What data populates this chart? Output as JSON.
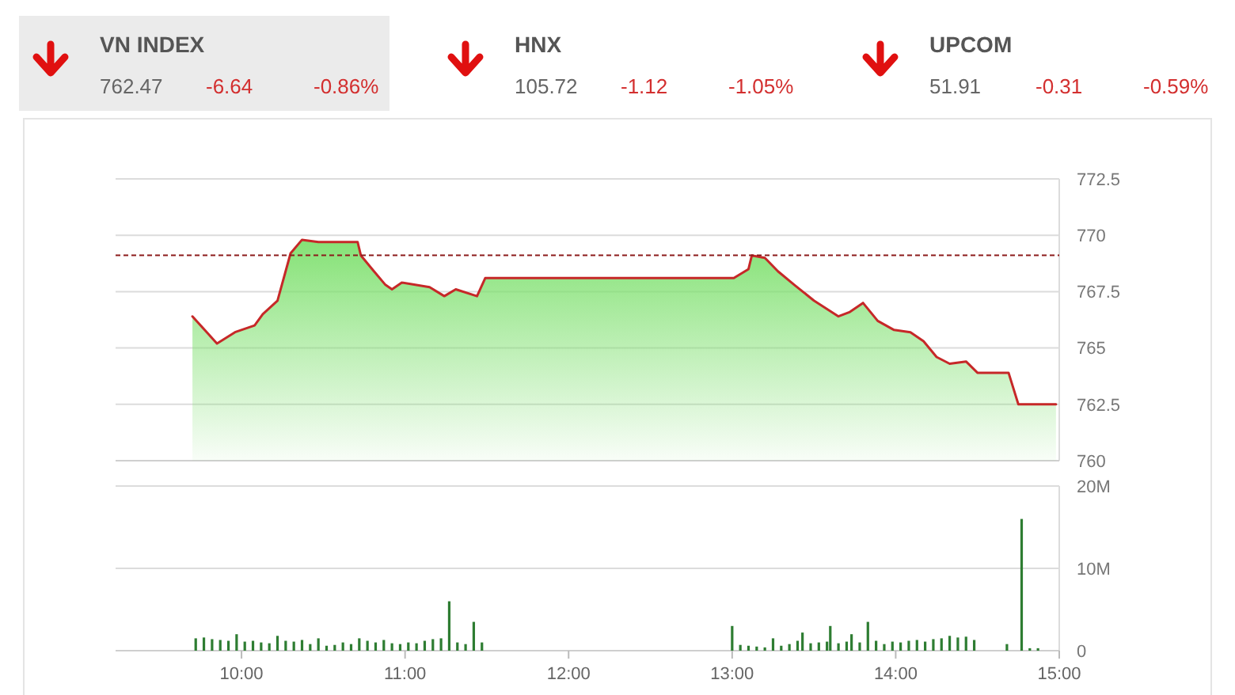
{
  "chart_data": [
    {
      "type": "other",
      "categories": [
        "VN INDEX",
        "HNX",
        "UPCOM"
      ],
      "annotations": [
        "762.47",
        "-6.64",
        "-0.86%",
        "105.72",
        "-1.12",
        "-1.05%",
        "51.91",
        "-0.31",
        "-0.59%"
      ]
    },
    {
      "type": "area",
      "x": [
        9.7,
        9.85,
        9.96,
        10.08,
        10.13,
        10.22,
        10.3,
        10.37,
        10.47,
        10.59,
        10.71,
        10.73,
        10.81,
        10.88,
        10.92,
        10.98,
        11.15,
        11.24,
        11.31,
        11.44,
        11.49,
        13.01,
        13.1,
        13.12,
        13.2,
        13.28,
        13.38,
        13.5,
        13.65,
        13.72,
        13.8,
        13.89,
        13.99,
        14.09,
        14.17,
        14.25,
        14.33,
        14.43,
        14.5,
        14.69,
        14.75,
        14.98
      ],
      "series": [
        {
          "color": "#c62828",
          "values": [
            766.4,
            765.2,
            765.7,
            766.0,
            766.5,
            767.1,
            769.2,
            769.8,
            769.7,
            769.7,
            769.7,
            769.1,
            768.4,
            767.8,
            767.6,
            767.9,
            767.7,
            767.3,
            767.6,
            767.3,
            768.1,
            768.1,
            768.5,
            769.1,
            769.0,
            768.4,
            767.8,
            767.1,
            766.4,
            766.6,
            767.0,
            766.2,
            765.8,
            765.7,
            765.3,
            764.6,
            764.3,
            764.4,
            763.9,
            763.9,
            762.5,
            762.5
          ]
        }
      ],
      "xlim": [
        9.23,
        15
      ],
      "ylim": [
        760,
        772.5
      ],
      "yticks": [
        760,
        762.5,
        765,
        767.5,
        770,
        772.5
      ],
      "grid": "y",
      "tick_labels": "y",
      "ref_lines": [
        {
          "axis": "y",
          "value": 769.11,
          "color": "#8b1a1a",
          "line_style": "dashed"
        }
      ]
    },
    {
      "type": "bar",
      "x": [
        9.72,
        9.77,
        9.82,
        9.87,
        9.92,
        9.97,
        10.02,
        10.07,
        10.12,
        10.17,
        10.22,
        10.27,
        10.32,
        10.37,
        10.42,
        10.47,
        10.52,
        10.57,
        10.62,
        10.67,
        10.72,
        10.77,
        10.82,
        10.87,
        10.92,
        10.97,
        11.02,
        11.07,
        11.12,
        11.17,
        11.22,
        11.27,
        11.32,
        11.37,
        11.42,
        11.47,
        13.0,
        13.05,
        13.1,
        13.15,
        13.2,
        13.25,
        13.3,
        13.35,
        13.4,
        13.43,
        13.48,
        13.53,
        13.58,
        13.6,
        13.65,
        13.7,
        13.73,
        13.78,
        13.83,
        13.88,
        13.93,
        13.98,
        14.03,
        14.08,
        14.13,
        14.18,
        14.23,
        14.28,
        14.33,
        14.38,
        14.43,
        14.48,
        14.68,
        14.77,
        14.82,
        14.87
      ],
      "series": [
        {
          "color": "#2e7d32",
          "values": [
            1.5,
            1.6,
            1.4,
            1.3,
            1.2,
            2.0,
            1.1,
            1.2,
            1.0,
            0.9,
            1.8,
            1.2,
            1.1,
            1.3,
            0.8,
            1.5,
            0.6,
            0.7,
            1.0,
            0.8,
            1.5,
            1.2,
            1.0,
            1.3,
            0.9,
            0.8,
            1.0,
            0.9,
            1.2,
            1.4,
            1.5,
            6.0,
            1.0,
            0.8,
            3.5,
            1.0,
            3.0,
            0.7,
            0.6,
            0.5,
            0.4,
            1.5,
            0.6,
            0.8,
            1.2,
            2.2,
            0.9,
            1.0,
            1.1,
            3.0,
            0.9,
            1.1,
            2.0,
            1.0,
            3.5,
            1.2,
            0.8,
            1.1,
            1.0,
            1.2,
            1.3,
            1.1,
            1.4,
            1.5,
            1.8,
            1.6,
            1.7,
            1.3,
            0.8,
            16.0,
            0.3,
            0.3
          ]
        }
      ],
      "xlim": [
        9.23,
        15
      ],
      "xticks": [
        {
          "value": 10,
          "label": "10:00"
        },
        {
          "value": 11,
          "label": "11:00"
        },
        {
          "value": 12,
          "label": "12:00"
        },
        {
          "value": 13,
          "label": "13:00"
        },
        {
          "value": 14,
          "label": "14:00"
        },
        {
          "value": 15,
          "label": "15:00"
        }
      ],
      "ylim": [
        0,
        20
      ],
      "yticks": [
        {
          "value": 0,
          "label": "0"
        },
        {
          "value": 10,
          "label": "10M"
        },
        {
          "value": 20,
          "label": "20M"
        }
      ],
      "grid": "y"
    }
  ]
}
